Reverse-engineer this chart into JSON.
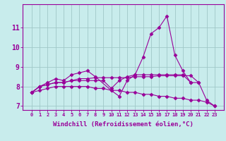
{
  "title": "",
  "xlabel": "Windchill (Refroidissement éolien,°C)",
  "ylabel": "",
  "bg_color": "#c8ecec",
  "grid_color": "#a0c8c8",
  "line_color": "#990099",
  "x_values": [
    0,
    1,
    2,
    3,
    4,
    5,
    6,
    7,
    8,
    9,
    10,
    11,
    12,
    13,
    14,
    15,
    16,
    17,
    18,
    19,
    20,
    21,
    22,
    23
  ],
  "series1": [
    7.7,
    8.0,
    8.2,
    8.4,
    8.3,
    8.6,
    8.7,
    8.8,
    8.5,
    null,
    7.8,
    7.5,
    8.3,
    8.6,
    9.5,
    10.7,
    11.0,
    11.6,
    9.6,
    8.8,
    8.2,
    null,
    null,
    null
  ],
  "series2": [
    7.7,
    8.0,
    8.1,
    8.2,
    8.2,
    8.3,
    8.4,
    8.4,
    8.45,
    8.45,
    8.45,
    8.45,
    8.45,
    8.5,
    8.5,
    8.5,
    8.55,
    8.55,
    8.55,
    8.55,
    8.55,
    8.2,
    null,
    null
  ],
  "series3": [
    7.7,
    8.0,
    8.1,
    8.2,
    8.2,
    8.3,
    8.3,
    8.3,
    8.3,
    8.3,
    7.9,
    8.3,
    8.5,
    8.6,
    8.6,
    8.6,
    8.6,
    8.6,
    8.6,
    8.6,
    8.2,
    8.2,
    7.3,
    7.0
  ],
  "series4": [
    7.7,
    7.8,
    7.9,
    8.0,
    8.0,
    8.0,
    8.0,
    8.0,
    7.9,
    7.9,
    7.8,
    7.8,
    7.7,
    7.7,
    7.6,
    7.6,
    7.5,
    7.5,
    7.4,
    7.4,
    7.3,
    7.3,
    7.2,
    7.0
  ],
  "ylim": [
    6.8,
    12.2
  ],
  "yticks": [
    7,
    8,
    9,
    10,
    11
  ],
  "xtick_fontsize": 5.0,
  "ytick_fontsize": 7.0,
  "xlabel_fontsize": 6.5
}
